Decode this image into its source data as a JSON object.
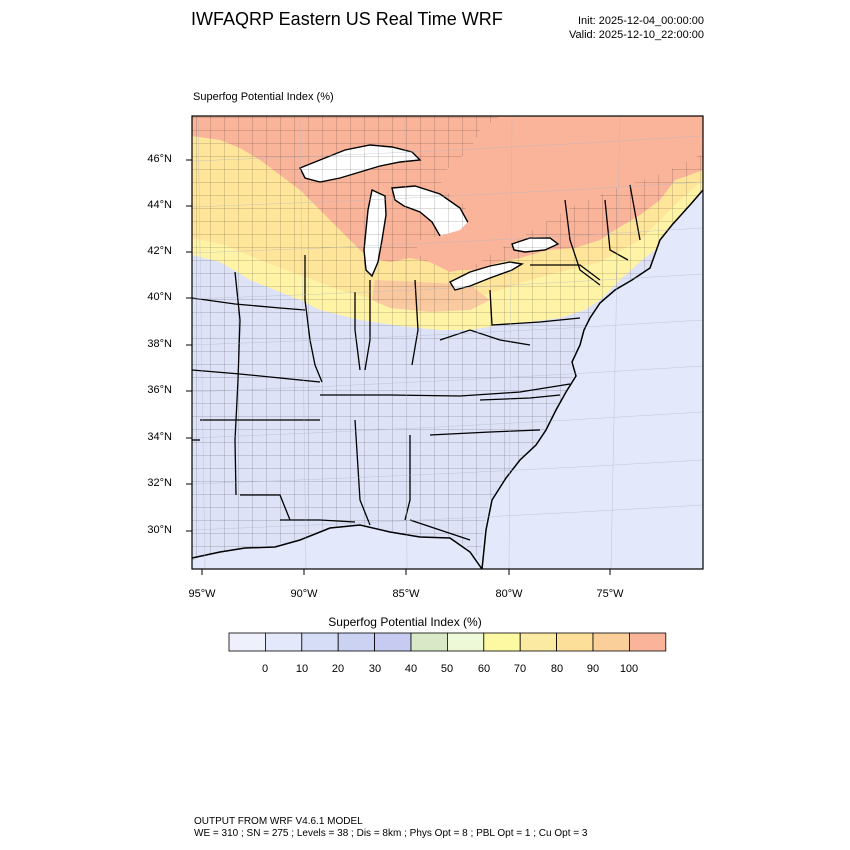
{
  "header": {
    "title": "IWFAQRP Eastern US Real Time WRF",
    "init": "Init: 2025-12-04_00:00:00",
    "valid": "Valid: 2025-12-10_22:00:00"
  },
  "map": {
    "field_label": "Superfog Potential Index   (%)",
    "lat_labels": [
      "46°N",
      "44°N",
      "42°N",
      "40°N",
      "38°N",
      "36°N",
      "34°N",
      "32°N",
      "30°N"
    ],
    "lon_labels": [
      "95°W",
      "90°W",
      "85°W",
      "80°W",
      "75°W"
    ],
    "colors": {
      "ocean": "#e3e8fb",
      "land_low": "#dde2f7",
      "band_mid": "#fff3a6",
      "band_high": "#ffe599",
      "north_max": "#f9b49a",
      "great_lakes": "#ffffff"
    }
  },
  "colorbar": {
    "title": "Superfog Potential Index  (%)",
    "ticks": [
      "0",
      "10",
      "20",
      "30",
      "40",
      "50",
      "60",
      "70",
      "80",
      "90",
      "100"
    ],
    "bins": [
      "#eef1fb",
      "#e3e8fb",
      "#d6ddf6",
      "#ccd3f2",
      "#c8cbf1",
      "#d9e8c6",
      "#eef9d8",
      "#fdf9a3",
      "#fbeaa2",
      "#fce09a",
      "#fbcf99",
      "#f9b49a"
    ]
  },
  "footer": {
    "line1": "OUTPUT FROM WRF V4.6.1 MODEL",
    "line2": "WE = 310 ; SN = 275 ; Levels = 38 ; Dis = 8km ; Phys Opt = 8 ; PBL Opt = 1 ; Cu Opt = 3"
  }
}
